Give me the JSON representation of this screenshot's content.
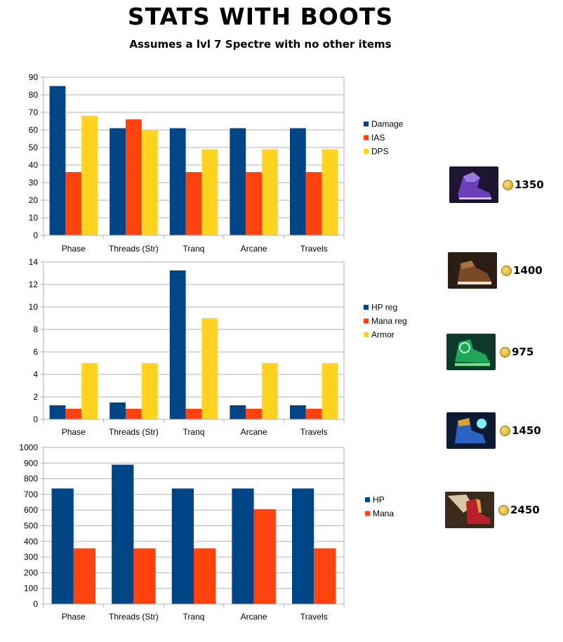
{
  "title": "STATS WITH BOOTS",
  "subtitle": "Assumes a lvl 7 Spectre with no other items",
  "colors": {
    "blue": "#004586",
    "red": "#ff420e",
    "yellow": "#ffd320",
    "grid": "#b3b3b3",
    "axis": "#b3b3b3"
  },
  "chart_data": [
    {
      "type": "bar",
      "categories": [
        "Phase",
        "Threads (Str)",
        "Tranq",
        "Arcane",
        "Travels"
      ],
      "ylim": [
        0,
        90
      ],
      "yticks": [
        0,
        10,
        20,
        30,
        40,
        50,
        60,
        70,
        80,
        90
      ],
      "series": [
        {
          "name": "Damage",
          "color": "#004586",
          "values": [
            85,
            61,
            61,
            61,
            61
          ]
        },
        {
          "name": "IAS",
          "color": "#ff420e",
          "values": [
            36,
            66,
            36,
            36,
            36
          ]
        },
        {
          "name": "DPS",
          "color": "#ffd320",
          "values": [
            68,
            60,
            49,
            49,
            49
          ]
        }
      ]
    },
    {
      "type": "bar",
      "categories": [
        "Phase",
        "Threads (Str)",
        "Tranq",
        "Arcane",
        "Travels"
      ],
      "ylim": [
        0,
        14
      ],
      "yticks": [
        0,
        2,
        4,
        6,
        8,
        10,
        12,
        14
      ],
      "series": [
        {
          "name": "HP reg",
          "color": "#004586",
          "values": [
            1.25,
            1.5,
            13.25,
            1.25,
            1.25
          ]
        },
        {
          "name": "Mana reg",
          "color": "#ff420e",
          "values": [
            0.94,
            0.94,
            0.94,
            0.94,
            0.94
          ]
        },
        {
          "name": "Armor",
          "color": "#ffd320",
          "values": [
            5,
            5,
            9,
            5,
            5
          ]
        }
      ]
    },
    {
      "type": "bar",
      "categories": [
        "Phase",
        "Threads (Str)",
        "Tranq",
        "Arcane",
        "Travels"
      ],
      "ylim": [
        0,
        1000
      ],
      "yticks": [
        0,
        100,
        200,
        300,
        400,
        500,
        600,
        700,
        800,
        900,
        1000
      ],
      "series": [
        {
          "name": "HP",
          "color": "#004586",
          "values": [
            738,
            890,
            738,
            738,
            738
          ]
        },
        {
          "name": "Mana",
          "color": "#ff420e",
          "values": [
            356,
            356,
            356,
            606,
            356
          ]
        }
      ]
    }
  ],
  "boots": [
    {
      "name": "Phase Boots",
      "price": "1350"
    },
    {
      "name": "Power Treads",
      "price": "1400"
    },
    {
      "name": "Tranquil Boots",
      "price": "975"
    },
    {
      "name": "Arcane Boots",
      "price": "1450"
    },
    {
      "name": "Boots of Travel",
      "price": "2450"
    }
  ]
}
